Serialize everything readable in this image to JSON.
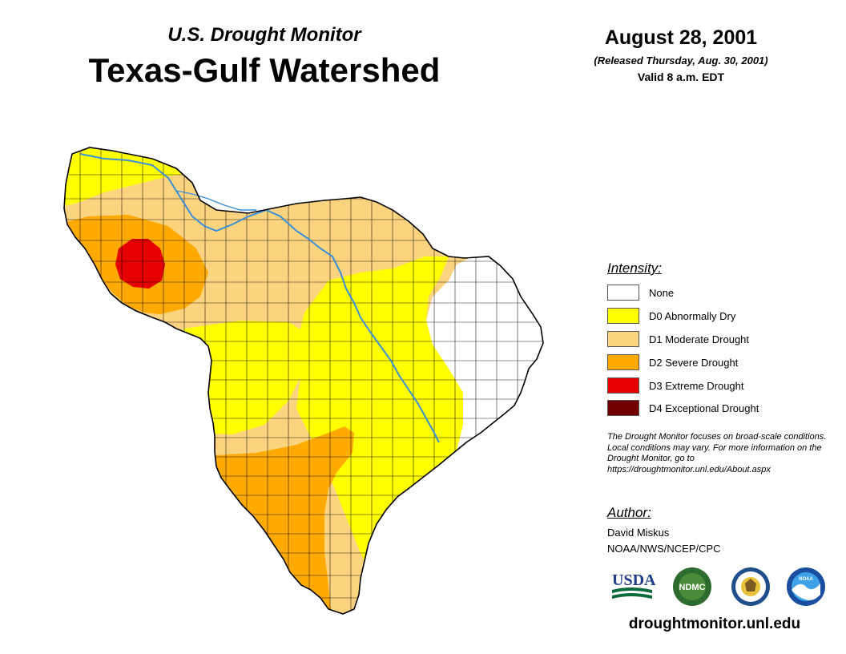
{
  "header": {
    "subtitle": "U.S. Drought Monitor",
    "title": "Texas-Gulf Watershed",
    "date": "August 28, 2001",
    "released": "(Released Thursday, Aug. 30, 2001)",
    "valid": "Valid 8 a.m. EDT"
  },
  "legend": {
    "title": "Intensity:",
    "items": [
      {
        "label": "None",
        "color": "#ffffff"
      },
      {
        "label": "D0 Abnormally Dry",
        "color": "#ffff00"
      },
      {
        "label": "D1 Moderate Drought",
        "color": "#fcd37f"
      },
      {
        "label": "D2 Severe Drought",
        "color": "#ffaa00"
      },
      {
        "label": "D3 Extreme Drought",
        "color": "#e60000"
      },
      {
        "label": "D4 Exceptional Drought",
        "color": "#730000"
      }
    ]
  },
  "note": "The Drought Monitor focuses on broad-scale conditions. Local conditions may vary. For more information on the Drought Monitor, go to https://droughtmonitor.unl.edu/About.aspx",
  "author": {
    "title": "Author:",
    "name": "David Miskus",
    "org": "NOAA/NWS/NCEP/CPC"
  },
  "logos": {
    "usda": "USDA",
    "ndmc": "NDMC",
    "noaa": "NOAA"
  },
  "footer": {
    "url": "droughtmonitor.unl.edu"
  },
  "map": {
    "river_color": "#3a8fd8",
    "boundary_color": "#000000"
  }
}
